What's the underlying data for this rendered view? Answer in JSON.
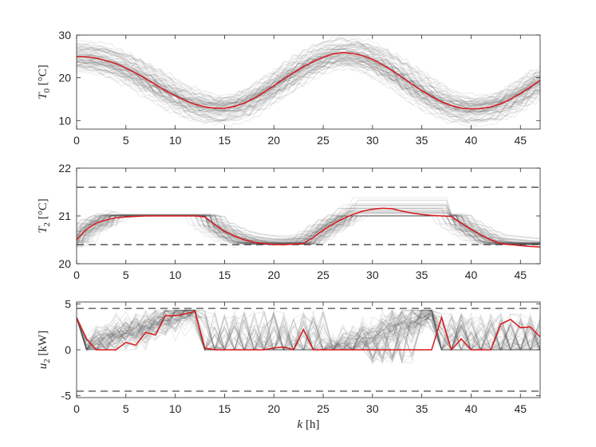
{
  "chart_data": [
    {
      "type": "line",
      "ylabel_symbol": "T",
      "ylabel_sub": "0",
      "ylabel_unit": " [°C]",
      "xlim": [
        0,
        47
      ],
      "ylim": [
        8,
        30
      ],
      "x_ticks": [
        0,
        5,
        10,
        15,
        20,
        25,
        30,
        35,
        40,
        45
      ],
      "y_ticks": [
        10,
        20,
        30
      ],
      "grid": false,
      "ensemble": {
        "color": "#555555",
        "description_values": "gray ensemble of sampled scenarios around the central trajectory"
      },
      "series": [
        {
          "color": "#d7191c",
          "x": [
            0,
            1,
            2,
            3,
            4,
            5,
            6,
            7,
            8,
            9,
            10,
            11,
            12,
            13,
            14,
            15,
            16,
            17,
            18,
            19,
            20,
            21,
            22,
            23,
            24,
            25,
            26,
            27,
            28,
            29,
            30,
            31,
            32,
            33,
            34,
            35,
            36,
            37,
            38,
            39,
            40,
            41,
            42,
            43,
            44,
            45,
            46,
            47
          ],
          "y": [
            25.0,
            24.9,
            24.6,
            24.0,
            23.3,
            22.3,
            21.1,
            19.8,
            18.4,
            17.0,
            15.8,
            14.7,
            13.8,
            13.2,
            12.9,
            12.9,
            13.3,
            14.1,
            15.2,
            16.6,
            18.1,
            19.7,
            21.2,
            22.6,
            23.8,
            24.8,
            25.6,
            25.9,
            25.7,
            25.2,
            24.3,
            23.1,
            21.7,
            20.1,
            18.5,
            17.0,
            15.6,
            14.4,
            13.5,
            12.9,
            12.7,
            12.8,
            13.2,
            13.9,
            15.0,
            16.3,
            17.8,
            19.4
          ]
        }
      ]
    },
    {
      "type": "line",
      "ylabel_symbol": "T",
      "ylabel_sub": "2",
      "ylabel_unit": " [°C]",
      "xlim": [
        0,
        47
      ],
      "ylim": [
        20,
        22
      ],
      "x_ticks": [
        0,
        5,
        10,
        15,
        20,
        25,
        30,
        35,
        40,
        45
      ],
      "y_ticks": [
        20,
        21,
        22
      ],
      "grid": false,
      "bounds": [
        20.4,
        21.6
      ],
      "ensemble": {
        "color": "#555555",
        "description_values": "gray ensemble of sampled scenarios"
      },
      "series": [
        {
          "color": "#d7191c",
          "x": [
            0,
            1,
            2,
            3,
            4,
            5,
            6,
            7,
            8,
            9,
            10,
            11,
            12,
            13,
            14,
            15,
            16,
            17,
            18,
            19,
            20,
            21,
            22,
            23,
            24,
            25,
            26,
            27,
            28,
            29,
            30,
            31,
            32,
            33,
            34,
            35,
            36,
            37,
            38,
            39,
            40,
            41,
            42,
            43,
            44,
            45,
            46,
            47
          ],
          "y": [
            20.5,
            20.72,
            20.85,
            20.92,
            20.96,
            20.98,
            20.99,
            21.0,
            21.0,
            21.0,
            21.0,
            21.0,
            21.0,
            20.98,
            20.82,
            20.68,
            20.58,
            20.5,
            20.45,
            20.42,
            20.4,
            20.4,
            20.41,
            20.42,
            20.55,
            20.7,
            20.83,
            20.94,
            21.03,
            21.1,
            21.14,
            21.16,
            21.15,
            21.1,
            21.06,
            21.03,
            21.01,
            21.0,
            20.99,
            20.85,
            20.72,
            20.6,
            20.5,
            20.42,
            20.4,
            20.38,
            20.36,
            20.35
          ]
        }
      ]
    },
    {
      "type": "line",
      "ylabel_symbol": "u",
      "ylabel_sub": "2",
      "ylabel_unit": " [kW]",
      "xlabel_symbol": "k",
      "xlabel_unit": " [h]",
      "xlim": [
        0,
        47
      ],
      "ylim": [
        -5.2,
        5.2
      ],
      "x_ticks": [
        0,
        5,
        10,
        15,
        20,
        25,
        30,
        35,
        40,
        45
      ],
      "y_ticks": [
        -5,
        0,
        5
      ],
      "grid": false,
      "bounds": [
        -4.5,
        4.5
      ],
      "ensemble": {
        "color": "#555555",
        "description_values": "gray ensemble of sampled control trajectories"
      },
      "series": [
        {
          "color": "#d7191c",
          "x": [
            0,
            1,
            2,
            3,
            4,
            5,
            6,
            7,
            8,
            9,
            10,
            11,
            12,
            13,
            14,
            15,
            16,
            17,
            18,
            19,
            20,
            21,
            22,
            23,
            24,
            25,
            26,
            27,
            28,
            29,
            30,
            31,
            32,
            33,
            34,
            35,
            36,
            37,
            38,
            39,
            40,
            41,
            42,
            43,
            44,
            45,
            46,
            47
          ],
          "y": [
            3.5,
            1.2,
            0.0,
            0.0,
            0.0,
            0.8,
            0.5,
            1.9,
            1.6,
            3.7,
            3.7,
            3.9,
            4.2,
            0.2,
            0.0,
            0.0,
            0.0,
            0.0,
            0.0,
            0.0,
            0.2,
            0.3,
            0.0,
            2.2,
            0.0,
            0.0,
            0.0,
            0.0,
            0.0,
            0.0,
            0.0,
            0.0,
            0.0,
            0.0,
            0.0,
            0.0,
            0.0,
            3.5,
            0.0,
            1.2,
            0.0,
            0.0,
            0.0,
            2.8,
            3.3,
            2.4,
            2.5,
            1.4
          ]
        }
      ]
    }
  ]
}
